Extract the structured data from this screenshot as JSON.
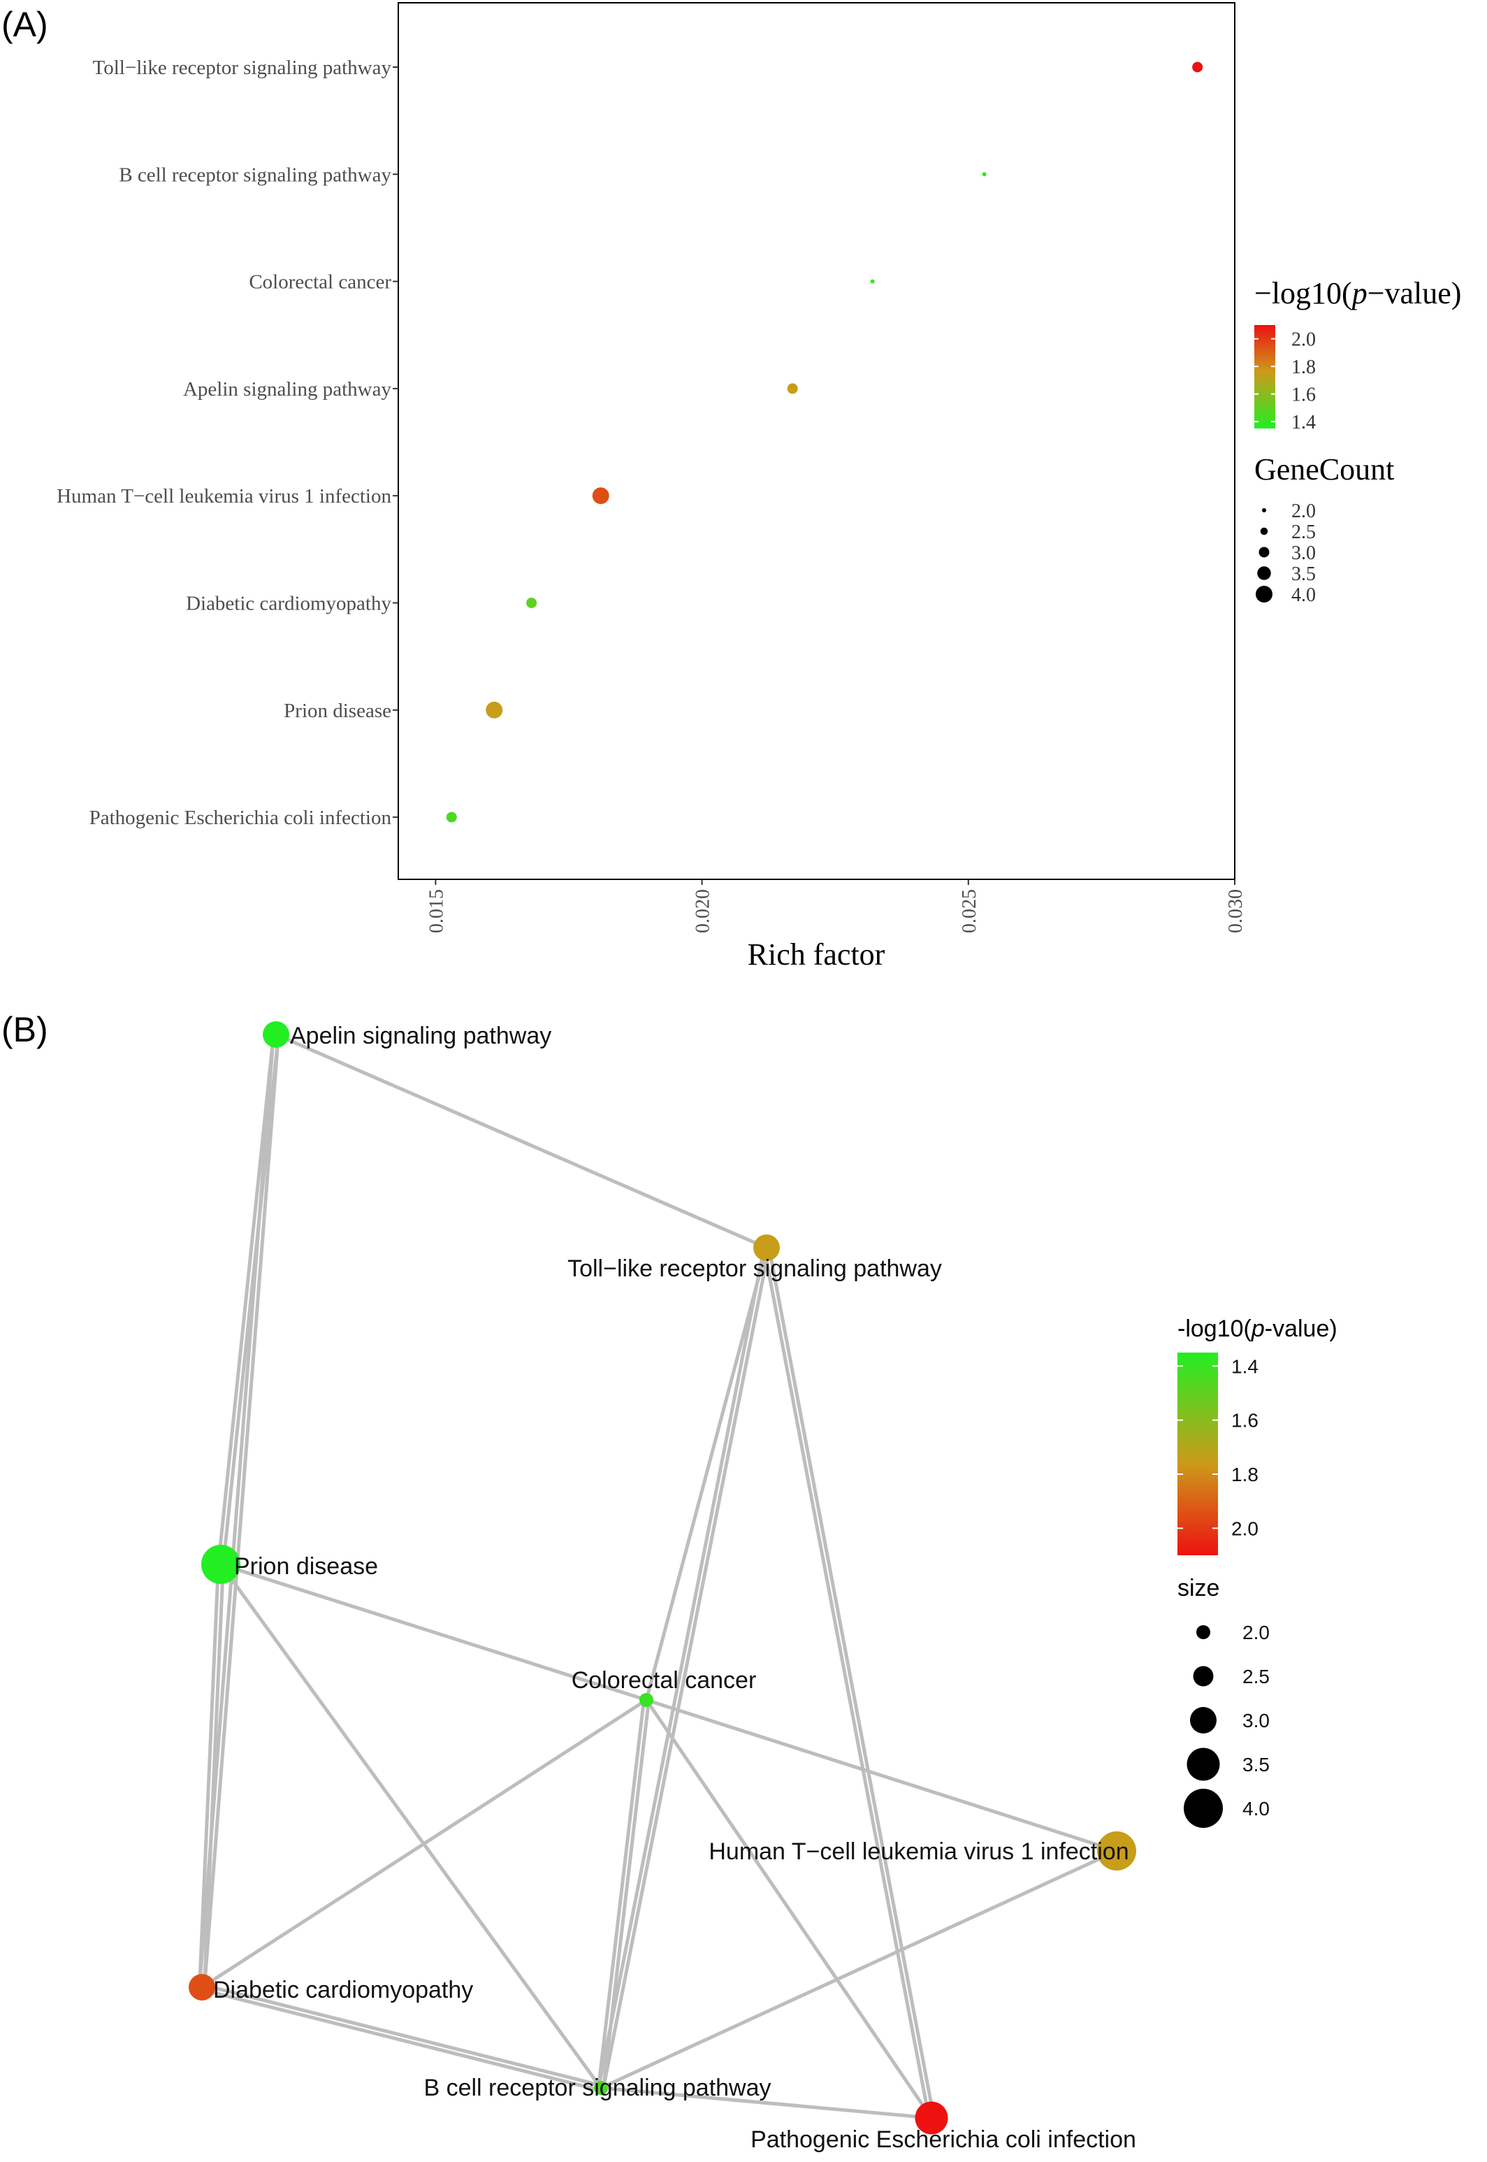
{
  "panels": {
    "a_label": "(A)",
    "b_label": "(B)"
  },
  "chart_data": [
    {
      "type": "scatter",
      "panel": "(A)",
      "xlabel": "Rich factor",
      "ylabel": "",
      "xlim": [
        0.0143,
        0.03
      ],
      "xticks": [
        0.015,
        0.02,
        0.025,
        0.03
      ],
      "xtick_labels": [
        "0.015",
        "0.020",
        "0.025",
        "0.030"
      ],
      "categories": [
        "Toll−like receptor signaling pathway",
        "B cell receptor signaling pathway",
        "Colorectal cancer",
        "Apelin signaling pathway",
        "Human T−cell leukemia virus 1 infection",
        "Diabetic cardiomyopathy",
        "Prion disease",
        "Pathogenic Escherichia coli infection"
      ],
      "points": [
        {
          "category": "Toll−like receptor signaling pathway",
          "x": 0.0293,
          "neglog10p": 2.1,
          "genecount": 3.0
        },
        {
          "category": "B cell receptor signaling pathway",
          "x": 0.0253,
          "neglog10p": 1.4,
          "genecount": 2.0
        },
        {
          "category": "Colorectal cancer",
          "x": 0.0232,
          "neglog10p": 1.4,
          "genecount": 2.0
        },
        {
          "category": "Apelin signaling pathway",
          "x": 0.0217,
          "neglog10p": 1.75,
          "genecount": 3.0
        },
        {
          "category": "Human T−cell leukemia virus 1 infection",
          "x": 0.0181,
          "neglog10p": 1.95,
          "genecount": 4.0
        },
        {
          "category": "Diabetic cardiomyopathy",
          "x": 0.0168,
          "neglog10p": 1.5,
          "genecount": 3.0
        },
        {
          "category": "Prion disease",
          "x": 0.0161,
          "neglog10p": 1.75,
          "genecount": 4.0
        },
        {
          "category": "Pathogenic Escherichia coli infection",
          "x": 0.0153,
          "neglog10p": 1.45,
          "genecount": 3.0
        }
      ],
      "color_legend": {
        "title_prefix": "−log10(",
        "title_italic": "p",
        "title_suffix": "−value)",
        "ticks": [
          2.0,
          1.8,
          1.6,
          1.4
        ],
        "tick_labels": [
          "2.0",
          "1.8",
          "1.6",
          "1.4"
        ],
        "range": [
          1.35,
          2.1
        ],
        "colors": {
          "low": "#22ee22",
          "mid": "#cc9a1a",
          "high": "#ee1111"
        }
      },
      "size_legend": {
        "title": "GeneCount",
        "values": [
          2.0,
          2.5,
          3.0,
          3.5,
          4.0
        ],
        "labels": [
          "2.0",
          "2.5",
          "3.0",
          "3.5",
          "4.0"
        ]
      },
      "legend_position": "right",
      "grid": false
    },
    {
      "type": "network",
      "panel": "(B)",
      "nodes": [
        {
          "id": "apelin",
          "label": "Apelin signaling pathway",
          "neglog10p": 1.35,
          "size": 3.0
        },
        {
          "id": "toll",
          "label": "Toll−like receptor signaling pathway",
          "neglog10p": 1.75,
          "size": 3.0
        },
        {
          "id": "prion",
          "label": "Prion disease",
          "neglog10p": 1.35,
          "size": 4.0
        },
        {
          "id": "colorectal",
          "label": "Colorectal cancer",
          "neglog10p": 1.4,
          "size": 2.0
        },
        {
          "id": "htlv",
          "label": "Human T−cell leukemia virus 1 infection",
          "neglog10p": 1.75,
          "size": 4.0
        },
        {
          "id": "diabetic",
          "label": "Diabetic cardiomyopathy",
          "neglog10p": 1.95,
          "size": 3.0
        },
        {
          "id": "bcell",
          "label": "B cell receptor signaling pathway",
          "neglog10p": 1.45,
          "size": 2.0
        },
        {
          "id": "ecoli",
          "label": "Pathogenic Escherichia coli infection",
          "neglog10p": 2.1,
          "size": 3.5
        }
      ],
      "edges": [
        {
          "source": "apelin",
          "target": "toll",
          "weight": 1
        },
        {
          "source": "apelin",
          "target": "prion",
          "weight": 2
        },
        {
          "source": "apelin",
          "target": "diabetic",
          "weight": 2
        },
        {
          "source": "prion",
          "target": "diabetic",
          "weight": 2
        },
        {
          "source": "prion",
          "target": "colorectal",
          "weight": 1
        },
        {
          "source": "prion",
          "target": "bcell",
          "weight": 1
        },
        {
          "source": "toll",
          "target": "bcell",
          "weight": 2
        },
        {
          "source": "toll",
          "target": "ecoli",
          "weight": 2
        },
        {
          "source": "toll",
          "target": "colorectal",
          "weight": 1
        },
        {
          "source": "colorectal",
          "target": "diabetic",
          "weight": 1
        },
        {
          "source": "colorectal",
          "target": "htlv",
          "weight": 1
        },
        {
          "source": "colorectal",
          "target": "bcell",
          "weight": 2
        },
        {
          "source": "colorectal",
          "target": "ecoli",
          "weight": 1
        },
        {
          "source": "htlv",
          "target": "bcell",
          "weight": 1
        },
        {
          "source": "diabetic",
          "target": "bcell",
          "weight": 2
        },
        {
          "source": "bcell",
          "target": "ecoli",
          "weight": 1
        }
      ],
      "color_legend": {
        "title_prefix": "-log10(",
        "title_italic": "p",
        "title_suffix": "-value)",
        "ticks": [
          1.4,
          1.6,
          1.8,
          2.0
        ],
        "tick_labels": [
          "1.4",
          "1.6",
          "1.8",
          "2.0"
        ],
        "range": [
          1.35,
          2.1
        ]
      },
      "size_legend": {
        "title": "size",
        "values": [
          2.0,
          2.5,
          3.0,
          3.5,
          4.0
        ],
        "labels": [
          "2.0",
          "2.5",
          "3.0",
          "3.5",
          "4.0"
        ]
      },
      "legend_position": "right"
    }
  ]
}
